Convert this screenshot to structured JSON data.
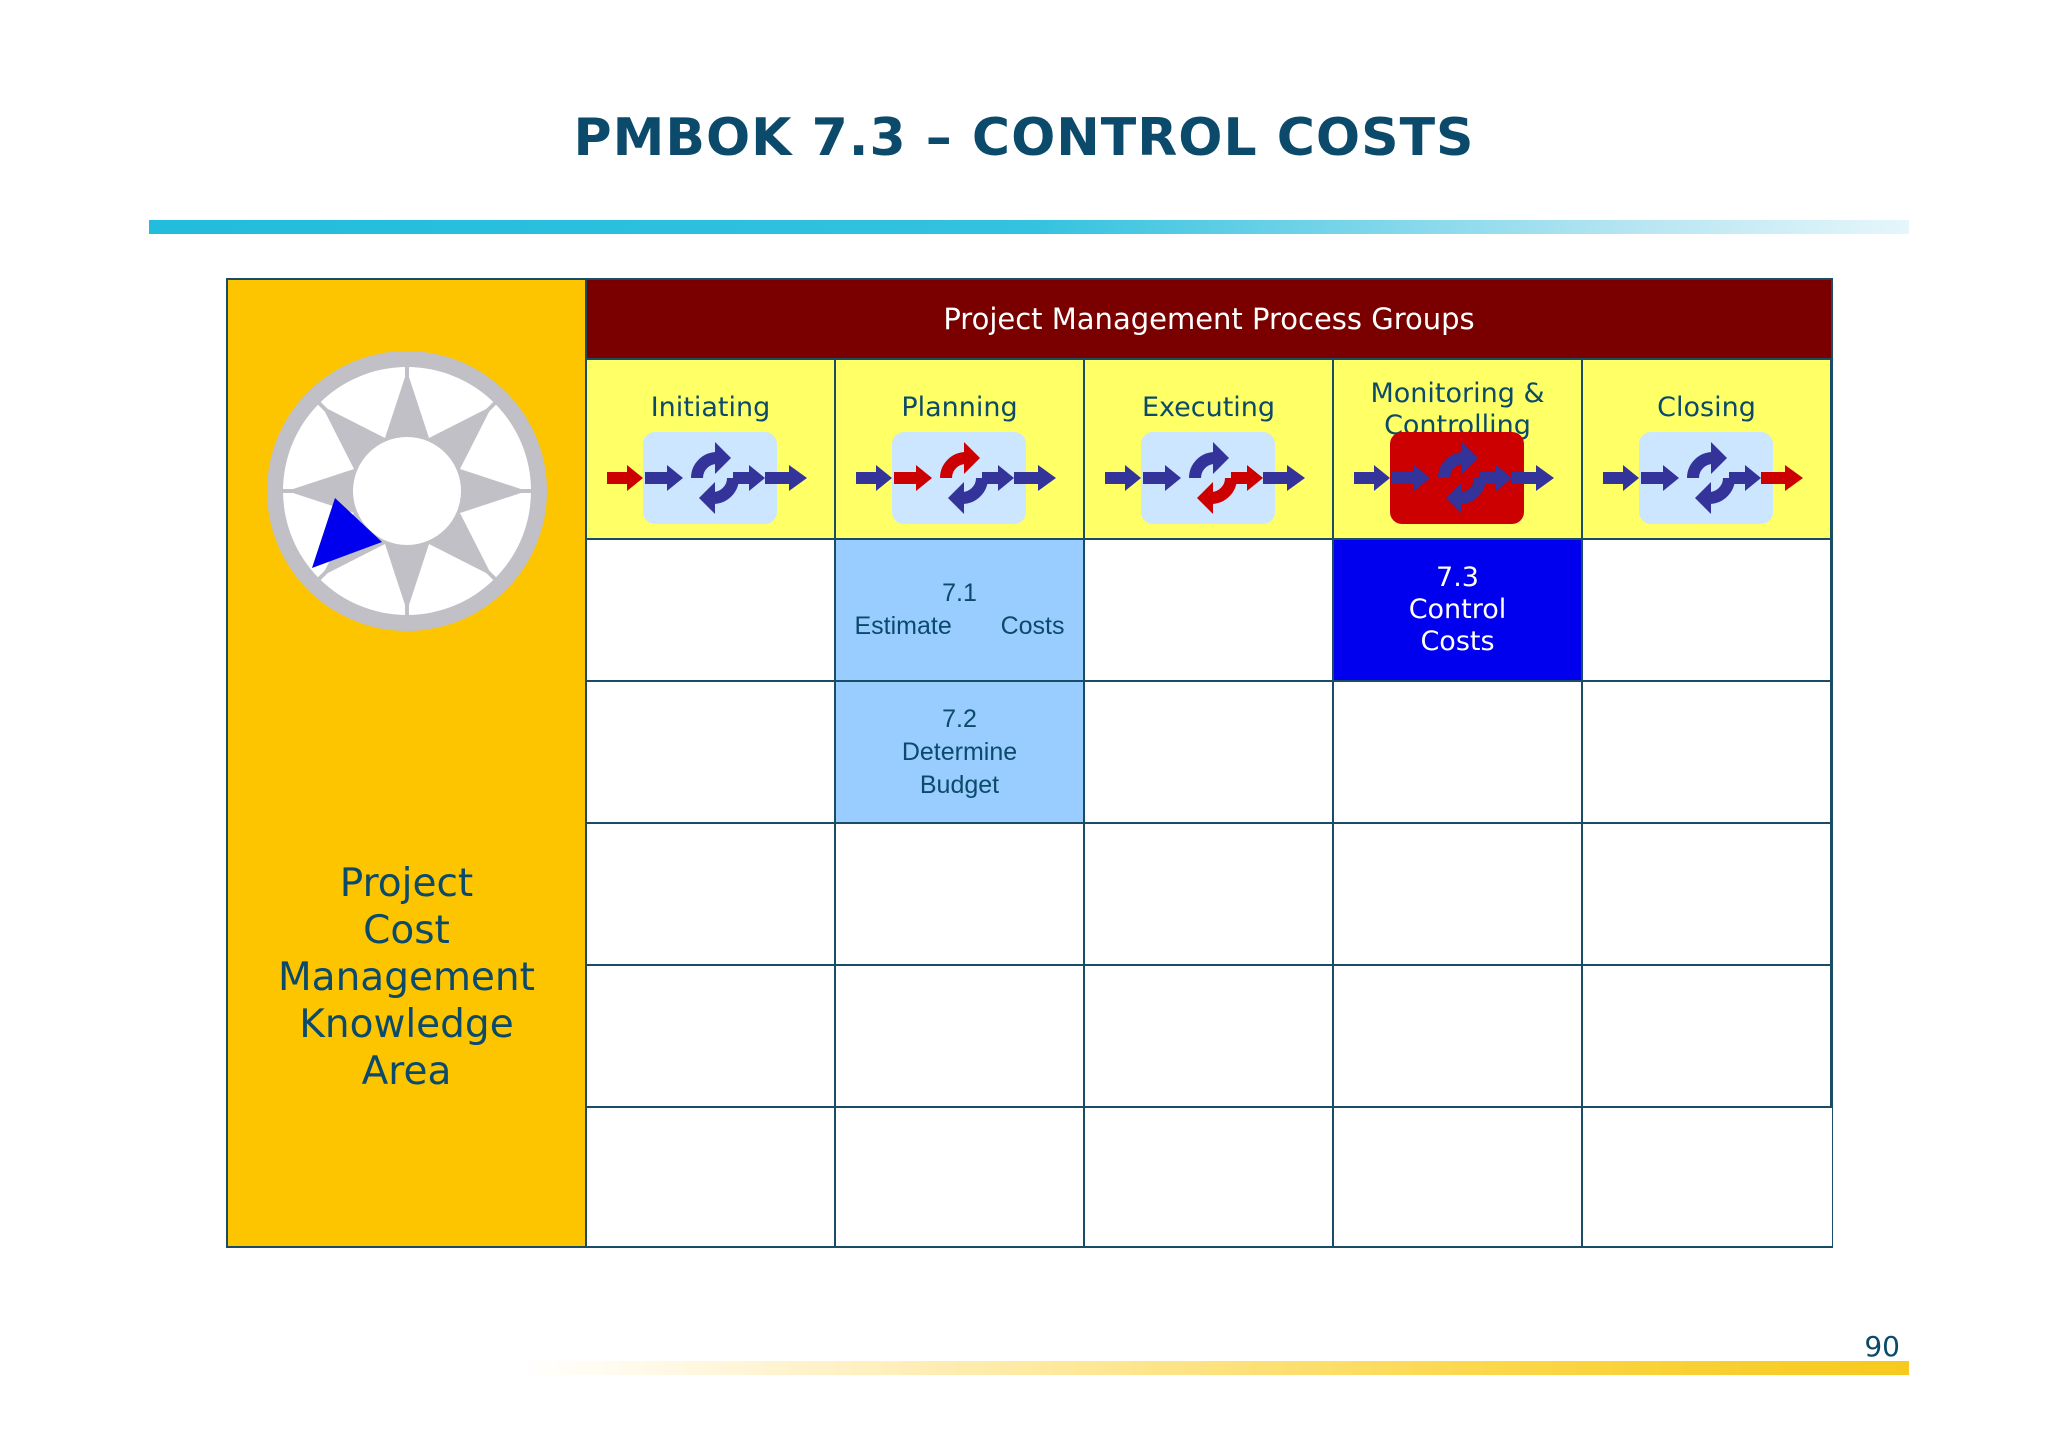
{
  "slide": {
    "title": "PMBOK 7.3 – CONTROL COSTS",
    "page_number": "90"
  },
  "knowledge_area": {
    "lines": [
      "Project",
      "Cost",
      "Management",
      "Knowledge",
      "Area"
    ]
  },
  "process_groups": {
    "header": "Project Management Process Groups",
    "groups": [
      {
        "lines": [
          "Initiating"
        ],
        "highlight": "input"
      },
      {
        "lines": [
          "Planning"
        ],
        "highlight": "plan"
      },
      {
        "lines": [
          "Executing"
        ],
        "highlight": "do"
      },
      {
        "lines": [
          "Monitoring &",
          "Controlling"
        ],
        "highlight": "control"
      },
      {
        "lines": [
          "Closing"
        ],
        "highlight": "output"
      }
    ]
  },
  "processes": {
    "estimate_costs": {
      "number": "7.1",
      "word1": "Estimate",
      "word2": "Costs"
    },
    "determine_budget": {
      "number": "7.2",
      "word1": "Determine",
      "word2": "Budget"
    },
    "control_costs": {
      "number": "7.3",
      "word1": "Control",
      "word2": "Costs"
    }
  },
  "colors": {
    "title": "#0b4a6a",
    "header_bg": "#7a0000",
    "group_bg": "#ffff66",
    "panel_bg": "#fdc500",
    "process_light": "#99ccff",
    "process_current": "#0000ee",
    "icon_blue": "#33339a",
    "icon_red": "#cc0000"
  }
}
